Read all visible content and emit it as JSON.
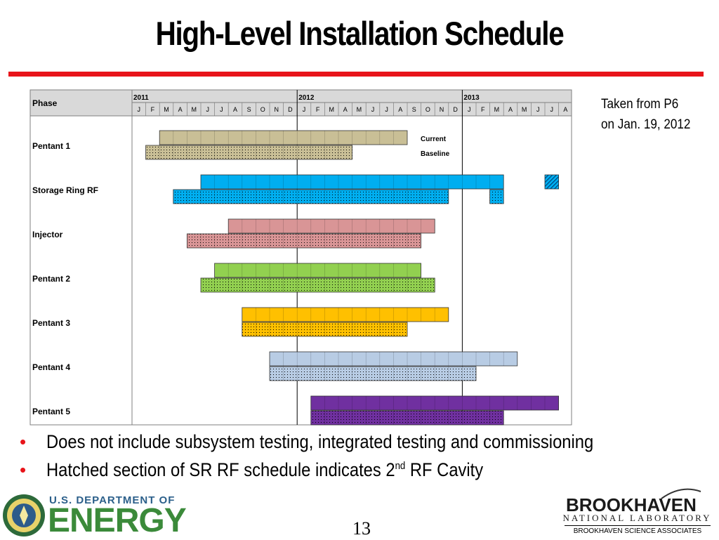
{
  "slide": {
    "title": "High-Level Installation Schedule",
    "note_line1": "Taken from P6",
    "note_line2": "on Jan. 19, 2012",
    "bullet1": "Does not include subsystem testing, integrated testing and commissioning",
    "bullet2_pre": "Hatched section of SR RF schedule indicates 2",
    "bullet2_sup": "nd",
    "bullet2_post": " RF Cavity",
    "page_number": "13",
    "doe_small": "U.S. DEPARTMENT OF",
    "doe_big": "ENERGY",
    "bnl_name": "BROOKHAVEN",
    "bnl_lab": "NATIONAL LABORATORY",
    "bnl_assoc": "BROOKHAVEN SCIENCE ASSOCIATES"
  },
  "chart_data": {
    "type": "gantt",
    "phase_header": "Phase",
    "years": [
      "2011",
      "2012",
      "2013"
    ],
    "months": [
      "J",
      "F",
      "M",
      "A",
      "M",
      "J",
      "J",
      "A",
      "S",
      "O",
      "N",
      "D",
      "J",
      "F",
      "M",
      "A",
      "M",
      "J",
      "J",
      "A",
      "S",
      "O",
      "N",
      "D",
      "J",
      "F",
      "M",
      "A",
      "M",
      "J",
      "J",
      "A"
    ],
    "bar_labels": [
      "Current",
      "Baseline"
    ],
    "legend": {
      "current": "solid bar (top)",
      "baseline": "dotted bar (bottom)",
      "hatched": "2nd RF Cavity"
    },
    "phases": [
      {
        "name": "Pentant 1",
        "color": "#c9bf96",
        "current": [
          [
            2,
            20
          ]
        ],
        "baseline": [
          [
            1,
            16
          ]
        ]
      },
      {
        "name": "Storage Ring RF",
        "color": "#00aef0",
        "current": [
          [
            5,
            27
          ]
        ],
        "current_hatched": [
          [
            30,
            31
          ]
        ],
        "baseline": [
          [
            3,
            23
          ],
          [
            26,
            27
          ]
        ]
      },
      {
        "name": "Injector",
        "color": "#d99596",
        "current": [
          [
            7,
            22
          ]
        ],
        "baseline": [
          [
            4,
            21
          ]
        ]
      },
      {
        "name": "Pentant 2",
        "color": "#92d050",
        "current": [
          [
            6,
            21
          ]
        ],
        "baseline": [
          [
            5,
            22
          ]
        ]
      },
      {
        "name": "Pentant 3",
        "color": "#ffc000",
        "current": [
          [
            8,
            23
          ]
        ],
        "baseline": [
          [
            8,
            20
          ]
        ]
      },
      {
        "name": "Pentant 4",
        "color": "#b8cce4",
        "current": [
          [
            10,
            28
          ]
        ],
        "baseline": [
          [
            10,
            25
          ]
        ]
      },
      {
        "name": "Pentant 5",
        "color": "#7030a0",
        "current": [
          [
            13,
            31
          ]
        ],
        "baseline": [
          [
            13,
            27
          ]
        ]
      }
    ]
  }
}
